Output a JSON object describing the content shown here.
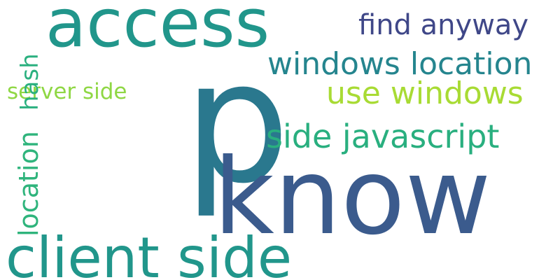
{
  "word_cloud": {
    "background": "#ffffff",
    "words": [
      {
        "text": "p",
        "color": "#2a788e",
        "orientation": "horizontal"
      },
      {
        "text": "know",
        "color": "#3b5b8d",
        "orientation": "horizontal"
      },
      {
        "text": "access",
        "color": "#21968b",
        "orientation": "horizontal"
      },
      {
        "text": "client side",
        "color": "#21968b",
        "orientation": "horizontal"
      },
      {
        "text": "find anyway",
        "color": "#3f4788",
        "orientation": "horizontal"
      },
      {
        "text": "windows location",
        "color": "#25858e",
        "orientation": "horizontal"
      },
      {
        "text": "use windows",
        "color": "#a8db34",
        "orientation": "horizontal"
      },
      {
        "text": "server side",
        "color": "#8fd744",
        "orientation": "horizontal"
      },
      {
        "text": "side javascript",
        "color": "#29af7f",
        "orientation": "horizontal"
      },
      {
        "text": "hash",
        "color": "#2ab07f",
        "orientation": "vertical"
      },
      {
        "text": "location",
        "color": "#2fb47c",
        "orientation": "vertical"
      }
    ]
  }
}
